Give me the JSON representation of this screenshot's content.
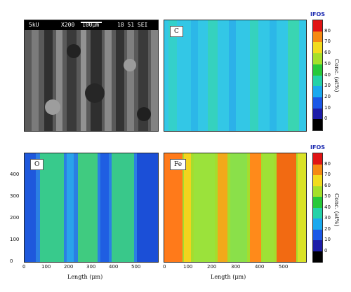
{
  "sem": {
    "voltage": "5kU",
    "magnification": "X200",
    "scale": "100μm",
    "stamp": "18 51 SEI"
  },
  "maps": {
    "c": {
      "label": "C",
      "base": "#2fc6e6"
    },
    "o": {
      "label": "O",
      "base": "#2f7fe0"
    },
    "fe": {
      "label": "Fe",
      "base": "#ff7a1a"
    }
  },
  "colorbar": {
    "title": "IFOS",
    "unit": "Conc. (at%)",
    "ticks": [
      "0",
      "10",
      "20",
      "30",
      "40",
      "50",
      "60",
      "70",
      "80"
    ],
    "colors": [
      "#000000",
      "#1d1da8",
      "#1b58e6",
      "#1aa9ee",
      "#24d2a8",
      "#27c93a",
      "#a5e02a",
      "#f2dc1d",
      "#f58a12",
      "#e01414"
    ]
  },
  "axes": {
    "y_ticks": [
      "0",
      "100",
      "200",
      "300",
      "400"
    ],
    "x_ticks": [
      "0",
      "100",
      "200",
      "300",
      "400",
      "500"
    ],
    "xlabel": "Length (μm)"
  }
}
